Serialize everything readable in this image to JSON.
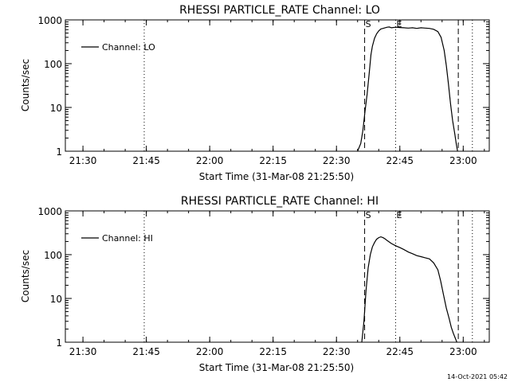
{
  "footer": "14-Oct-2021 05:42",
  "chart_data": [
    {
      "type": "line",
      "title": "RHESSI PARTICLE_RATE Channel: LO",
      "xlabel": "Start Time (31-Mar-08 21:25:50)",
      "ylabel": "Counts/sec",
      "x_unit": "time (HH:MM)",
      "xlim": [
        "21:25:50",
        "23:06:10"
      ],
      "ylim": [
        1,
        1000
      ],
      "y_scale": "log",
      "x_ticks": [
        "21:30",
        "21:45",
        "22:00",
        "22:15",
        "22:30",
        "22:45",
        "23:00"
      ],
      "y_ticks": [
        "1",
        "10",
        "100",
        "1000"
      ],
      "legend": {
        "label": "Channel: LO",
        "position": "top-left"
      },
      "markers": [
        {
          "label": "S",
          "time": "22:36:40",
          "style": "dashed"
        },
        {
          "label": "E",
          "time": "22:44:00",
          "style": "dotted"
        }
      ],
      "lines": [
        {
          "time": "21:44:30",
          "style": "dotted"
        },
        {
          "time": "22:58:50",
          "style": "dashed"
        },
        {
          "time": "23:02:10",
          "style": "dotted"
        }
      ],
      "series": [
        {
          "name": "Channel: LO",
          "x": [
            "22:35:00",
            "22:35:45",
            "22:36:15",
            "22:36:45",
            "22:37:15",
            "22:37:45",
            "22:38:10",
            "22:38:30",
            "22:39:00",
            "22:39:30",
            "22:40:00",
            "22:40:30",
            "22:41:00",
            "22:41:30",
            "22:42:00",
            "22:42:30",
            "22:43:00",
            "22:44:00",
            "22:45:00",
            "22:46:00",
            "22:47:00",
            "22:48:00",
            "22:49:00",
            "22:50:00",
            "22:51:00",
            "22:52:00",
            "22:53:00",
            "22:54:00",
            "22:54:45",
            "22:55:30",
            "22:56:00",
            "22:56:30",
            "22:57:00",
            "22:57:30",
            "22:58:00",
            "22:58:20",
            "22:58:40"
          ],
          "values": [
            1,
            1.5,
            3,
            8,
            20,
            60,
            160,
            250,
            380,
            480,
            560,
            620,
            640,
            660,
            680,
            690,
            660,
            680,
            670,
            660,
            650,
            660,
            640,
            660,
            650,
            640,
            610,
            540,
            400,
            200,
            90,
            35,
            12,
            5,
            2.5,
            1.5,
            1
          ]
        }
      ]
    },
    {
      "type": "line",
      "title": "RHESSI PARTICLE_RATE Channel: HI",
      "xlabel": "Start Time (31-Mar-08 21:25:50)",
      "ylabel": "Counts/sec",
      "x_unit": "time (HH:MM)",
      "xlim": [
        "21:25:50",
        "23:06:10"
      ],
      "ylim": [
        1,
        1000
      ],
      "y_scale": "log",
      "x_ticks": [
        "21:30",
        "21:45",
        "22:00",
        "22:15",
        "22:30",
        "22:45",
        "23:00"
      ],
      "y_ticks": [
        "1",
        "10",
        "100",
        "1000"
      ],
      "legend": {
        "label": "Channel: HI",
        "position": "top-left"
      },
      "markers": [
        {
          "label": "S",
          "time": "22:36:40",
          "style": "dashed"
        },
        {
          "label": "E",
          "time": "22:44:00",
          "style": "dotted"
        }
      ],
      "lines": [
        {
          "time": "21:44:30",
          "style": "dotted"
        },
        {
          "time": "22:58:50",
          "style": "dashed"
        },
        {
          "time": "23:02:10",
          "style": "dotted"
        }
      ],
      "series": [
        {
          "name": "Channel: HI",
          "x": [
            "22:36:00",
            "22:36:30",
            "22:37:00",
            "22:37:30",
            "22:38:00",
            "22:38:30",
            "22:39:00",
            "22:39:30",
            "22:40:00",
            "22:40:30",
            "22:41:00",
            "22:41:30",
            "22:42:00",
            "22:43:00",
            "22:44:00",
            "22:45:00",
            "22:46:00",
            "22:47:00",
            "22:48:00",
            "22:49:00",
            "22:50:00",
            "22:51:00",
            "22:52:00",
            "22:53:00",
            "22:54:00",
            "22:54:40",
            "22:55:20",
            "22:56:00",
            "22:56:40",
            "22:57:10",
            "22:57:40",
            "22:58:10",
            "22:58:30"
          ],
          "values": [
            1,
            3,
            15,
            50,
            100,
            150,
            190,
            225,
            245,
            255,
            245,
            230,
            210,
            180,
            160,
            145,
            130,
            115,
            105,
            95,
            90,
            85,
            80,
            65,
            45,
            25,
            12,
            6,
            3.5,
            2.2,
            1.6,
            1.2,
            1
          ]
        }
      ]
    }
  ]
}
